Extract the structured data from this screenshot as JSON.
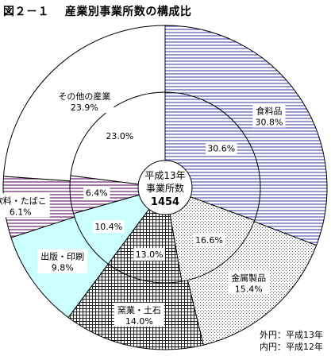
{
  "title": "図２－１　 産業別事業所数の構成比",
  "center": {
    "line1": "平成13年",
    "line2": "事業所数",
    "value": "1454"
  },
  "legend": {
    "outer": "外円：平成13年",
    "inner": "内円：平成12年"
  },
  "chart_data": {
    "type": "pie",
    "title": "図２－１　 産業別事業所数の構成比",
    "rings": [
      {
        "name": "外円：平成13年",
        "slices": [
          {
            "category": "食料品",
            "value": 30.8,
            "label": "30.8%"
          },
          {
            "category": "金属製品",
            "value": 15.4,
            "label": "15.4%"
          },
          {
            "category": "窯業・土石",
            "value": 14.0,
            "label": "14.0%"
          },
          {
            "category": "出版・印刷",
            "value": 9.8,
            "label": "9.8%"
          },
          {
            "category": "飲料・たばこ",
            "value": 6.1,
            "label": "6.1%"
          },
          {
            "category": "その他の産業",
            "value": 23.9,
            "label": "23.9%"
          }
        ]
      },
      {
        "name": "内円：平成12年",
        "slices": [
          {
            "category": "食料品",
            "value": 30.6,
            "label": "30.6%"
          },
          {
            "category": "金属製品",
            "value": 16.6,
            "label": "16.6%"
          },
          {
            "category": "窯業・土石",
            "value": 13.0,
            "label": "13.0%"
          },
          {
            "category": "出版・印刷",
            "value": 10.4,
            "label": "10.4%"
          },
          {
            "category": "飲料・たばこ",
            "value": 6.4,
            "label": "6.4%"
          },
          {
            "category": "その他の産業",
            "value": 23.0,
            "label": "23.0%"
          }
        ]
      }
    ],
    "colors": [
      "pattern-vertical-lines",
      "pattern-dots",
      "pattern-crosshatch",
      "#ccffff",
      "pattern-horizontal-lines",
      "#ffffff"
    ]
  }
}
